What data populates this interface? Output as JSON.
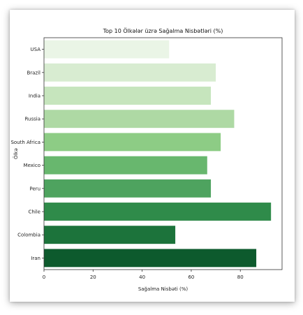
{
  "chart_data": {
    "type": "bar",
    "orientation": "horizontal",
    "title": "Top 10 Ölkələr üzrə Sağalma Nisbətləri (%)",
    "xlabel": "Sağalma Nisbəti (%)",
    "ylabel": "Ölkə",
    "xlim": [
      0,
      97
    ],
    "xticks": [
      0,
      20,
      40,
      60,
      80
    ],
    "categories": [
      "USA",
      "Brazil",
      "India",
      "Russia",
      "South Africa",
      "Mexico",
      "Peru",
      "Chile",
      "Colombia",
      "Iran"
    ],
    "values": [
      51,
      70,
      68,
      77.5,
      72,
      66.5,
      68,
      92.5,
      53.5,
      86.5
    ],
    "colors": [
      "#eaf5e6",
      "#d8ecd1",
      "#c6e5bd",
      "#aed9a4",
      "#8dcc85",
      "#68b76e",
      "#4ea35f",
      "#2f8b4a",
      "#1c733b",
      "#0d5a2d"
    ],
    "grid": false,
    "legend": "none"
  }
}
